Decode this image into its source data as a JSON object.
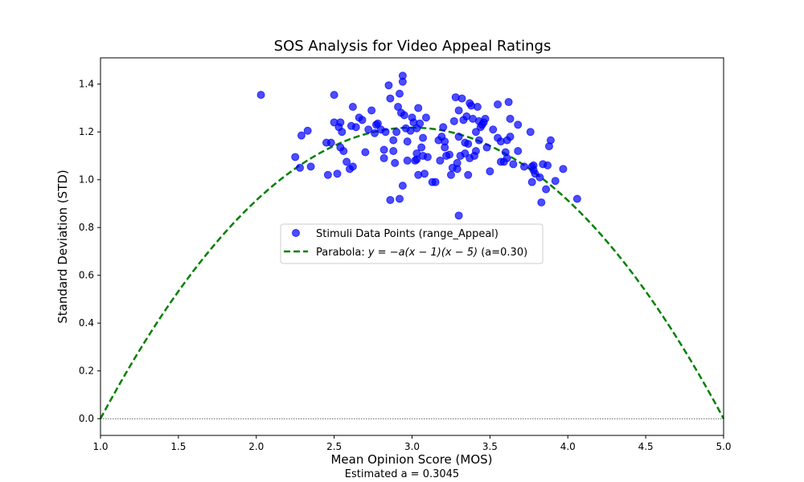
{
  "chart_data": {
    "type": "scatter",
    "title": "SOS Analysis for Video Appeal Ratings",
    "xlabel": "Mean Opinion Score (MOS)",
    "ylabel": "Standard Deviation (STD)",
    "xlim": [
      1.0,
      5.0
    ],
    "ylim": [
      -0.07,
      1.51
    ],
    "xticks": [
      "1.0",
      "1.5",
      "2.0",
      "2.5",
      "3.0",
      "3.5",
      "4.0",
      "4.5",
      "5.0"
    ],
    "yticks": [
      "0.0",
      "0.2",
      "0.4",
      "0.6",
      "0.8",
      "1.0",
      "1.2",
      "1.4"
    ],
    "grid": false,
    "legend_position": "center",
    "footnote": "Estimated a = 0.3045",
    "colors": {
      "points": "#0000ff",
      "curve": "#008000",
      "baseline": "#000000"
    },
    "series": [
      {
        "name": "Stimuli Data Points (range_Appeal)",
        "kind": "scatter",
        "points": [
          [
            2.03,
            1.355
          ],
          [
            2.25,
            1.095
          ],
          [
            2.28,
            1.05
          ],
          [
            2.29,
            1.185
          ],
          [
            2.33,
            1.205
          ],
          [
            2.35,
            1.055
          ],
          [
            2.45,
            1.155
          ],
          [
            2.46,
            1.02
          ],
          [
            2.48,
            1.155
          ],
          [
            2.5,
            1.355
          ],
          [
            2.5,
            1.24
          ],
          [
            2.52,
            1.025
          ],
          [
            2.53,
            1.22
          ],
          [
            2.54,
            1.135
          ],
          [
            2.54,
            1.24
          ],
          [
            2.55,
            1.2
          ],
          [
            2.56,
            1.12
          ],
          [
            2.58,
            1.075
          ],
          [
            2.6,
            1.045
          ],
          [
            2.61,
            1.225
          ],
          [
            2.62,
            1.305
          ],
          [
            2.62,
            1.055
          ],
          [
            2.64,
            1.22
          ],
          [
            2.66,
            1.26
          ],
          [
            2.68,
            1.25
          ],
          [
            2.7,
            1.115
          ],
          [
            2.72,
            1.21
          ],
          [
            2.74,
            1.29
          ],
          [
            2.76,
            1.195
          ],
          [
            2.77,
            1.23
          ],
          [
            2.78,
            1.235
          ],
          [
            2.8,
            1.21
          ],
          [
            2.82,
            1.125
          ],
          [
            2.82,
            1.09
          ],
          [
            2.83,
            1.2
          ],
          [
            2.85,
            1.395
          ],
          [
            2.86,
            1.34
          ],
          [
            2.86,
            0.915
          ],
          [
            2.88,
            1.12
          ],
          [
            2.88,
            1.165
          ],
          [
            2.89,
            1.07
          ],
          [
            2.9,
            1.2
          ],
          [
            2.91,
            1.305
          ],
          [
            2.92,
            1.36
          ],
          [
            2.92,
            0.92
          ],
          [
            2.93,
            1.28
          ],
          [
            2.94,
            1.41
          ],
          [
            2.94,
            1.435
          ],
          [
            2.94,
            0.975
          ],
          [
            2.95,
            1.27
          ],
          [
            2.96,
            1.215
          ],
          [
            2.97,
            1.08
          ],
          [
            2.97,
            1.16
          ],
          [
            2.99,
            1.205
          ],
          [
            3.0,
            1.26
          ],
          [
            3.01,
            1.24
          ],
          [
            3.02,
            1.08
          ],
          [
            3.03,
            1.085
          ],
          [
            3.03,
            1.215
          ],
          [
            3.03,
            1.11
          ],
          [
            3.04,
            1.3
          ],
          [
            3.04,
            1.02
          ],
          [
            3.05,
            1.235
          ],
          [
            3.06,
            1.135
          ],
          [
            3.07,
            1.1
          ],
          [
            3.07,
            1.175
          ],
          [
            3.08,
            1.025
          ],
          [
            3.09,
            1.26
          ],
          [
            3.1,
            1.095
          ],
          [
            3.13,
            0.99
          ],
          [
            3.15,
            0.99
          ],
          [
            3.17,
            1.165
          ],
          [
            3.18,
            1.08
          ],
          [
            3.19,
            1.18
          ],
          [
            3.2,
            1.22
          ],
          [
            3.21,
            1.135
          ],
          [
            3.21,
            1.16
          ],
          [
            3.22,
            1.1
          ],
          [
            3.24,
            1.105
          ],
          [
            3.25,
            1.02
          ],
          [
            3.26,
            1.05
          ],
          [
            3.27,
            1.245
          ],
          [
            3.28,
            1.345
          ],
          [
            3.29,
            1.045
          ],
          [
            3.29,
            1.07
          ],
          [
            3.3,
            1.29
          ],
          [
            3.3,
            1.18
          ],
          [
            3.3,
            0.85
          ],
          [
            3.31,
            1.1
          ],
          [
            3.32,
            1.34
          ],
          [
            3.33,
            1.25
          ],
          [
            3.34,
            1.155
          ],
          [
            3.34,
            1.11
          ],
          [
            3.35,
            1.265
          ],
          [
            3.36,
            1.15
          ],
          [
            3.36,
            1.02
          ],
          [
            3.37,
            1.32
          ],
          [
            3.37,
            1.09
          ],
          [
            3.38,
            1.31
          ],
          [
            3.39,
            1.255
          ],
          [
            3.4,
            1.1
          ],
          [
            3.41,
            1.2
          ],
          [
            3.41,
            1.12
          ],
          [
            3.42,
            1.305
          ],
          [
            3.43,
            1.245
          ],
          [
            3.43,
            1.165
          ],
          [
            3.44,
            1.22
          ],
          [
            3.45,
            1.23
          ],
          [
            3.46,
            1.24
          ],
          [
            3.47,
            1.255
          ],
          [
            3.48,
            1.135
          ],
          [
            3.5,
            1.035
          ],
          [
            3.52,
            1.21
          ],
          [
            3.55,
            1.315
          ],
          [
            3.55,
            1.175
          ],
          [
            3.57,
            1.075
          ],
          [
            3.57,
            1.16
          ],
          [
            3.59,
            1.075
          ],
          [
            3.6,
            1.115
          ],
          [
            3.61,
            1.09
          ],
          [
            3.61,
            1.165
          ],
          [
            3.62,
            1.325
          ],
          [
            3.63,
            1.255
          ],
          [
            3.63,
            1.18
          ],
          [
            3.65,
            1.065
          ],
          [
            3.68,
            1.12
          ],
          [
            3.68,
            1.23
          ],
          [
            3.72,
            1.055
          ],
          [
            3.76,
            1.2
          ],
          [
            3.77,
            0.99
          ],
          [
            3.77,
            1.055
          ],
          [
            3.78,
            1.04
          ],
          [
            3.78,
            1.06
          ],
          [
            3.79,
            1.025
          ],
          [
            3.82,
            1.01
          ],
          [
            3.83,
            0.905
          ],
          [
            3.84,
            1.065
          ],
          [
            3.86,
            0.96
          ],
          [
            3.87,
            1.06
          ],
          [
            3.88,
            1.14
          ],
          [
            3.89,
            1.165
          ],
          [
            3.92,
            0.995
          ],
          [
            3.97,
            1.045
          ],
          [
            4.06,
            0.92
          ]
        ]
      },
      {
        "name": "Parabola: y = −a(x − 1)(x − 5) (a=0.30)",
        "label_prefix": "Parabola: ",
        "label_formula": "y = −a(x − 1)(x − 5)",
        "label_suffix": " (a=0.30)",
        "kind": "line",
        "style": "dashed",
        "a": 0.3045,
        "x_range": [
          1.0,
          5.0
        ]
      }
    ],
    "reference_line": {
      "y": 0.0,
      "style": "dotted"
    }
  }
}
